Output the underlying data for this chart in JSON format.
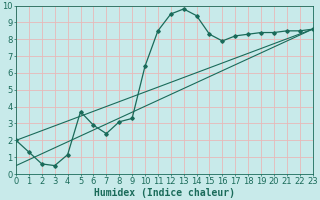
{
  "xlabel": "Humidex (Indice chaleur)",
  "xlim": [
    0,
    23
  ],
  "ylim": [
    0,
    10
  ],
  "xticks": [
    0,
    1,
    2,
    3,
    4,
    5,
    6,
    7,
    8,
    9,
    10,
    11,
    12,
    13,
    14,
    15,
    16,
    17,
    18,
    19,
    20,
    21,
    22,
    23
  ],
  "yticks": [
    0,
    1,
    2,
    3,
    4,
    5,
    6,
    7,
    8,
    9,
    10
  ],
  "bg_color": "#c8eaea",
  "grid_color": "#e8b8b8",
  "line_color": "#1a6b5a",
  "curve_x": [
    0,
    1,
    2,
    3,
    4,
    5,
    6,
    7,
    8,
    9,
    10,
    11,
    12,
    13,
    14,
    15,
    16,
    17,
    18,
    19,
    20,
    21,
    22,
    23
  ],
  "curve_y": [
    2.0,
    1.3,
    0.6,
    0.5,
    1.15,
    3.7,
    2.9,
    2.4,
    3.1,
    3.3,
    6.4,
    8.5,
    9.5,
    9.8,
    9.4,
    8.3,
    7.9,
    8.2,
    8.3,
    8.4,
    8.4,
    8.5,
    8.5,
    8.6
  ],
  "line1_x": [
    0,
    23
  ],
  "line1_y": [
    2.0,
    8.6
  ],
  "line2_x": [
    0,
    23
  ],
  "line2_y": [
    0.5,
    8.6
  ],
  "font_size_xlabel": 7.0,
  "tick_fontsize": 6.0
}
